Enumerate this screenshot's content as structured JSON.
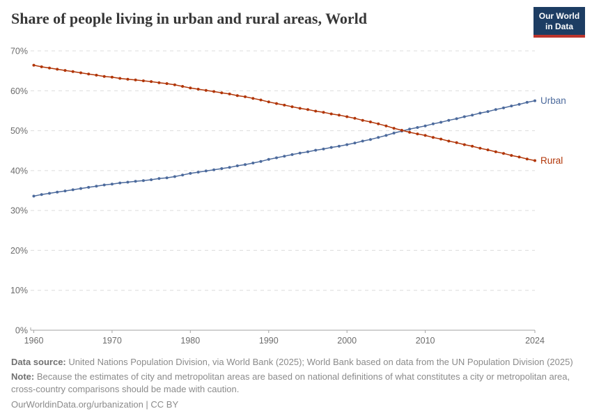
{
  "header": {
    "title": "Share of people living in urban and rural areas, World",
    "logo": {
      "line1": "Our World",
      "line2": "in Data",
      "bg_color": "#1d3d63",
      "accent_color": "#bc342c"
    }
  },
  "chart_data": {
    "type": "line",
    "title": "Share of people living in urban and rural areas, World",
    "xlabel": "",
    "ylabel": "",
    "xlim": [
      1960,
      2024
    ],
    "ylim": [
      0,
      70
    ],
    "x_ticks": [
      1960,
      1970,
      1980,
      1990,
      2000,
      2010,
      2024
    ],
    "y_ticks": [
      0,
      10,
      20,
      30,
      40,
      50,
      60,
      70
    ],
    "y_tick_suffix": "%",
    "grid": true,
    "grid_style": "dashed",
    "grid_color": "#dcdcdc",
    "axis_color": "#a3a3a3",
    "legend_position": "end-of-line",
    "x": [
      1960,
      1961,
      1962,
      1963,
      1964,
      1965,
      1966,
      1967,
      1968,
      1969,
      1970,
      1971,
      1972,
      1973,
      1974,
      1975,
      1976,
      1977,
      1978,
      1979,
      1980,
      1981,
      1982,
      1983,
      1984,
      1985,
      1986,
      1987,
      1988,
      1989,
      1990,
      1991,
      1992,
      1993,
      1994,
      1995,
      1996,
      1997,
      1998,
      1999,
      2000,
      2001,
      2002,
      2003,
      2004,
      2005,
      2006,
      2007,
      2008,
      2009,
      2010,
      2011,
      2012,
      2013,
      2014,
      2015,
      2016,
      2017,
      2018,
      2019,
      2020,
      2021,
      2022,
      2023,
      2024
    ],
    "series": [
      {
        "name": "Urban",
        "color": "#4C6A9C",
        "values": [
          33.6,
          34.0,
          34.3,
          34.6,
          34.9,
          35.2,
          35.5,
          35.8,
          36.1,
          36.4,
          36.6,
          36.9,
          37.1,
          37.3,
          37.5,
          37.7,
          38.0,
          38.2,
          38.5,
          38.9,
          39.3,
          39.6,
          39.9,
          40.2,
          40.5,
          40.8,
          41.2,
          41.5,
          41.9,
          42.3,
          42.8,
          43.2,
          43.6,
          44.0,
          44.4,
          44.7,
          45.1,
          45.4,
          45.8,
          46.1,
          46.5,
          46.9,
          47.4,
          47.8,
          48.3,
          48.8,
          49.4,
          49.9,
          50.4,
          50.8,
          51.2,
          51.7,
          52.1,
          52.6,
          53.0,
          53.5,
          53.9,
          54.4,
          54.8,
          55.3,
          55.7,
          56.2,
          56.6,
          57.1,
          57.5
        ]
      },
      {
        "name": "Rural",
        "color": "#B13507",
        "values": [
          66.4,
          66.0,
          65.7,
          65.4,
          65.1,
          64.8,
          64.5,
          64.2,
          63.9,
          63.6,
          63.4,
          63.1,
          62.9,
          62.7,
          62.5,
          62.3,
          62.0,
          61.8,
          61.5,
          61.1,
          60.7,
          60.4,
          60.1,
          59.8,
          59.5,
          59.2,
          58.8,
          58.5,
          58.1,
          57.7,
          57.2,
          56.8,
          56.4,
          56.0,
          55.6,
          55.3,
          54.9,
          54.6,
          54.2,
          53.9,
          53.5,
          53.1,
          52.6,
          52.2,
          51.7,
          51.2,
          50.6,
          50.1,
          49.6,
          49.2,
          48.8,
          48.3,
          47.9,
          47.4,
          47.0,
          46.5,
          46.1,
          45.6,
          45.2,
          44.7,
          44.3,
          43.8,
          43.4,
          42.9,
          42.5
        ]
      }
    ]
  },
  "footer": {
    "source_label": "Data source:",
    "source_text": "United Nations Population Division, via World Bank (2025); World Bank based on data from the UN Population Division (2025)",
    "note_label": "Note:",
    "note_text": "Because the estimates of city and metropolitan areas are based on national definitions of what constitutes a city or metropolitan area, cross-country comparisons should be made with caution.",
    "citation": "OurWorldinData.org/urbanization | CC BY"
  }
}
